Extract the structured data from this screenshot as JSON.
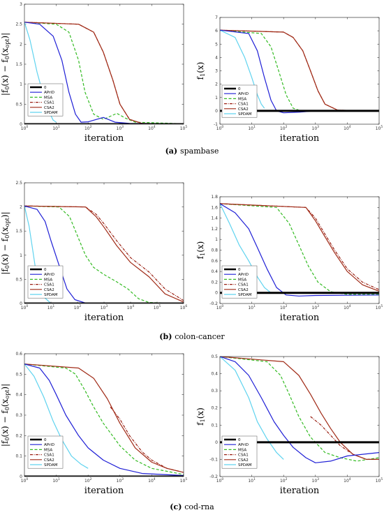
{
  "x_axis_label": "iteration",
  "legend": [
    {
      "name": "0",
      "color": "#000000",
      "dash": "",
      "width": 3
    },
    {
      "name": "APriD",
      "color": "#1f1fd6",
      "dash": "",
      "width": 1.2
    },
    {
      "name": "MSA",
      "color": "#33bb22",
      "dash": "4,2.5",
      "width": 1.2
    },
    {
      "name": "CSA1",
      "color": "#9a1f12",
      "dash": "4,1.5,1,1.5",
      "width": 1.2
    },
    {
      "name": "CSA2",
      "color": "#a02a16",
      "dash": "",
      "width": 1.2
    },
    {
      "name": "SPDAM",
      "color": "#5fd3ef",
      "dash": "",
      "width": 1.2
    }
  ],
  "captions": [
    {
      "letter": "(a)",
      "text": "spambase"
    },
    {
      "letter": "(b)",
      "text": "colon-cancer"
    },
    {
      "letter": "(c)",
      "text": "cod-rna"
    }
  ],
  "chart_data": [
    {
      "type": "line",
      "panel": "a-left",
      "xscale": "log",
      "xlim": [
        1,
        100000
      ],
      "ylim": [
        0,
        3
      ],
      "yticks": [
        "0",
        "0.5",
        "1",
        "1.5",
        "2",
        "2.5",
        "3"
      ],
      "xticks": [
        "10^0",
        "10^1",
        "10^2",
        "10^3",
        "10^4",
        "10^5"
      ],
      "xlabel": "iteration",
      "ylabel": "|f_0(x) − f_0(x_opt)|",
      "series": [
        {
          "name": "0",
          "x": [
            1,
            100000
          ],
          "y": [
            0,
            0
          ]
        },
        {
          "name": "APriD",
          "x": [
            1,
            3,
            8,
            15,
            25,
            40,
            60,
            100,
            300,
            700,
            2000,
            100000
          ],
          "y": [
            2.55,
            2.5,
            2.2,
            1.6,
            0.8,
            0.25,
            0.05,
            0.06,
            0.17,
            0.05,
            0.02,
            0.01
          ]
        },
        {
          "name": "MSA",
          "x": [
            1,
            10,
            25,
            50,
            80,
            150,
            300,
            800,
            1500,
            3000,
            100000
          ],
          "y": [
            2.55,
            2.5,
            2.3,
            1.6,
            0.8,
            0.25,
            0.12,
            0.27,
            0.15,
            0.05,
            0.01
          ]
        },
        {
          "name": "CSA1",
          "x": [
            1,
            50,
            150,
            300,
            600,
            1000,
            2000,
            5000,
            100000
          ],
          "y": [
            2.55,
            2.5,
            2.3,
            1.8,
            1.1,
            0.5,
            0.12,
            0.02,
            0.0
          ]
        },
        {
          "name": "CSA2",
          "x": [
            1,
            50,
            150,
            300,
            600,
            1000,
            2000,
            5000,
            100000
          ],
          "y": [
            2.55,
            2.5,
            2.3,
            1.8,
            1.1,
            0.5,
            0.12,
            0.02,
            0.0
          ]
        },
        {
          "name": "SPDAM",
          "x": [
            1,
            1.5,
            2.5,
            4,
            6,
            8,
            10
          ],
          "y": [
            2.55,
            2.1,
            1.3,
            0.7,
            0.3,
            0.1,
            0.05
          ]
        }
      ]
    },
    {
      "type": "line",
      "panel": "a-right",
      "xscale": "log",
      "xlim": [
        1,
        100000
      ],
      "ylim": [
        -1,
        7
      ],
      "yticks": [
        "-1",
        "0",
        "1",
        "2",
        "3",
        "4",
        "5",
        "6",
        "7"
      ],
      "xticks": [
        "10^0",
        "10^1",
        "10^2",
        "10^3",
        "10^4",
        "10^5"
      ],
      "xlabel": "iteration",
      "ylabel": "f_1(x)",
      "series": [
        {
          "name": "0",
          "x": [
            1,
            100000
          ],
          "y": [
            0,
            0
          ]
        },
        {
          "name": "APriD",
          "x": [
            1,
            8,
            15,
            25,
            40,
            60,
            100,
            300,
            1000,
            100000
          ],
          "y": [
            6.05,
            5.8,
            4.5,
            2.5,
            0.8,
            0.0,
            -0.15,
            -0.1,
            0.0,
            0.0
          ]
        },
        {
          "name": "MSA",
          "x": [
            1,
            20,
            40,
            70,
            120,
            200,
            400,
            1000,
            100000
          ],
          "y": [
            6.05,
            5.8,
            4.8,
            3.0,
            1.2,
            0.2,
            -0.05,
            0.0,
            0.0
          ]
        },
        {
          "name": "CSA1",
          "x": [
            1,
            100,
            200,
            400,
            700,
            1200,
            2000,
            5000,
            100000
          ],
          "y": [
            6.05,
            5.9,
            5.5,
            4.5,
            3.0,
            1.5,
            0.5,
            0.05,
            0.0
          ]
        },
        {
          "name": "CSA2",
          "x": [
            1,
            100,
            200,
            400,
            700,
            1200,
            2000,
            5000,
            100000
          ],
          "y": [
            6.05,
            5.9,
            5.5,
            4.5,
            3.0,
            1.5,
            0.5,
            0.05,
            0.0
          ]
        },
        {
          "name": "SPDAM",
          "x": [
            1,
            3,
            6,
            10,
            15,
            20,
            25
          ],
          "y": [
            6.05,
            5.5,
            4.0,
            2.5,
            1.2,
            0.5,
            0.2
          ]
        }
      ]
    },
    {
      "type": "line",
      "panel": "b-left",
      "xscale": "log",
      "xlim": [
        1,
        1000000
      ],
      "ylim": [
        0,
        2.5
      ],
      "yticks": [
        "0",
        "0.5",
        "1",
        "1.5",
        "2",
        "2.5"
      ],
      "xticks": [
        "10^0",
        "10^1",
        "10^2",
        "10^3",
        "10^4",
        "10^5",
        "10^6"
      ],
      "xlabel": "iteration",
      "ylabel": "|f_0(x) − f_0(x_opt)|",
      "series": [
        {
          "name": "0",
          "x": [
            1,
            1000000
          ],
          "y": [
            0,
            0
          ]
        },
        {
          "name": "APriD",
          "x": [
            1,
            3,
            6,
            10,
            20,
            40,
            80,
            200,
            1000,
            1000000
          ],
          "y": [
            2.02,
            1.95,
            1.7,
            1.3,
            0.8,
            0.3,
            0.08,
            0.01,
            0.0,
            0.0
          ]
        },
        {
          "name": "MSA",
          "x": [
            1,
            20,
            50,
            100,
            200,
            400,
            1000,
            3000,
            8000,
            20000,
            50000,
            1000000
          ],
          "y": [
            2.02,
            2.0,
            1.8,
            1.4,
            1.0,
            0.75,
            0.6,
            0.45,
            0.3,
            0.1,
            0.02,
            0.0
          ]
        },
        {
          "name": "CSA1",
          "x": [
            1,
            200,
            500,
            1000,
            3000,
            10000,
            50000,
            200000,
            1000000
          ],
          "y": [
            2.02,
            2.0,
            1.85,
            1.65,
            1.3,
            0.95,
            0.65,
            0.3,
            0.06
          ]
        },
        {
          "name": "CSA2",
          "x": [
            1,
            200,
            500,
            1000,
            3000,
            10000,
            50000,
            200000,
            1000000
          ],
          "y": [
            2.02,
            2.0,
            1.8,
            1.58,
            1.2,
            0.85,
            0.55,
            0.2,
            0.03
          ]
        },
        {
          "name": "SPDAM",
          "x": [
            1,
            1.5,
            2.2,
            3,
            5,
            8,
            10
          ],
          "y": [
            2.02,
            1.6,
            1.0,
            0.5,
            0.15,
            0.05,
            0.0
          ]
        }
      ]
    },
    {
      "type": "line",
      "panel": "b-right",
      "xscale": "log",
      "xlim": [
        1,
        100000
      ],
      "ylim": [
        -0.2,
        1.8
      ],
      "yticks": [
        "-0.2",
        "0",
        "0.2",
        "0.4",
        "0.6",
        "0.8",
        "1",
        "1.2",
        "1.4",
        "1.6",
        "1.8"
      ],
      "xticks": [
        "10^0",
        "10^1",
        "10^2",
        "10^3",
        "10^4",
        "10^5"
      ],
      "xlabel": "iteration",
      "ylabel": "f_1(x)",
      "series": [
        {
          "name": "0",
          "x": [
            1,
            100000
          ],
          "y": [
            0,
            0
          ]
        },
        {
          "name": "APriD",
          "x": [
            1,
            3,
            8,
            15,
            30,
            60,
            120,
            300,
            1000,
            100000
          ],
          "y": [
            1.67,
            1.5,
            1.2,
            0.85,
            0.45,
            0.1,
            -0.04,
            -0.06,
            -0.05,
            -0.04
          ]
        },
        {
          "name": "MSA",
          "x": [
            1,
            60,
            150,
            300,
            600,
            1200,
            3000,
            10000,
            100000
          ],
          "y": [
            1.67,
            1.6,
            1.3,
            0.9,
            0.5,
            0.2,
            0.02,
            -0.03,
            -0.03
          ]
        },
        {
          "name": "CSA1",
          "x": [
            1,
            500,
            1000,
            2000,
            4000,
            10000,
            30000,
            100000
          ],
          "y": [
            1.67,
            1.6,
            1.4,
            1.1,
            0.8,
            0.45,
            0.2,
            0.06
          ]
        },
        {
          "name": "CSA2",
          "x": [
            1,
            500,
            1000,
            2000,
            4000,
            10000,
            30000,
            100000
          ],
          "y": [
            1.67,
            1.6,
            1.35,
            1.05,
            0.75,
            0.4,
            0.15,
            0.03
          ]
        },
        {
          "name": "SPDAM",
          "x": [
            1,
            2,
            4,
            8,
            15,
            25,
            40
          ],
          "y": [
            1.67,
            1.3,
            0.9,
            0.6,
            0.3,
            0.1,
            0.0
          ]
        }
      ]
    },
    {
      "type": "line",
      "panel": "c-left",
      "xscale": "log",
      "xlim": [
        1,
        100000
      ],
      "ylim": [
        0,
        0.6
      ],
      "yticks": [
        "0",
        "0.1",
        "0.2",
        "0.3",
        "0.4",
        "0.5",
        "0.6"
      ],
      "xticks": [
        "10^0",
        "10^1",
        "10^2",
        "10^3",
        "10^4",
        "10^5"
      ],
      "xlabel": "iteration",
      "ylabel": "|f_0(x) − f_0(x_opt)|",
      "series": [
        {
          "name": "0",
          "x": [
            1,
            100000
          ],
          "y": [
            0,
            0
          ]
        },
        {
          "name": "APriD",
          "x": [
            1,
            3,
            6,
            10,
            20,
            50,
            100,
            300,
            1000,
            5000,
            100000
          ],
          "y": [
            0.55,
            0.53,
            0.47,
            0.4,
            0.3,
            0.2,
            0.14,
            0.08,
            0.04,
            0.015,
            0.005
          ]
        },
        {
          "name": "MSA",
          "x": [
            1,
            20,
            40,
            80,
            150,
            300,
            1000,
            3000,
            10000,
            100000
          ],
          "y": [
            0.55,
            0.53,
            0.5,
            0.42,
            0.34,
            0.26,
            0.15,
            0.08,
            0.04,
            0.01
          ]
        },
        {
          "name": "CSA1",
          "x": [
            500,
            1000,
            2000,
            5000,
            10000,
            30000,
            100000
          ],
          "y": [
            0.34,
            0.28,
            0.2,
            0.12,
            0.08,
            0.04,
            0.02
          ]
        },
        {
          "name": "CSA2",
          "x": [
            1,
            50,
            150,
            400,
            1000,
            3000,
            10000,
            30000,
            100000
          ],
          "y": [
            0.55,
            0.53,
            0.48,
            0.38,
            0.26,
            0.14,
            0.07,
            0.04,
            0.02
          ]
        },
        {
          "name": "SPDAM",
          "x": [
            1,
            2,
            4,
            8,
            15,
            30,
            60,
            100
          ],
          "y": [
            0.55,
            0.49,
            0.39,
            0.27,
            0.18,
            0.1,
            0.06,
            0.04
          ]
        }
      ]
    },
    {
      "type": "line",
      "panel": "c-right",
      "xscale": "log",
      "xlim": [
        1,
        100000
      ],
      "ylim": [
        -0.2,
        0.5
      ],
      "yticks": [
        "-0.2",
        "-0.1",
        "0",
        "0.1",
        "0.2",
        "0.3",
        "0.4",
        "0.5"
      ],
      "xticks": [
        "10^0",
        "10^1",
        "10^2",
        "10^3",
        "10^4",
        "10^5"
      ],
      "xlabel": "iteration",
      "ylabel": "f_1(x)",
      "series": [
        {
          "name": "0",
          "x": [
            1,
            100000
          ],
          "y": [
            0,
            0
          ]
        },
        {
          "name": "APriD",
          "x": [
            1,
            3,
            8,
            20,
            50,
            100,
            200,
            500,
            1000,
            3000,
            10000,
            100000
          ],
          "y": [
            0.5,
            0.47,
            0.39,
            0.26,
            0.12,
            0.04,
            -0.03,
            -0.09,
            -0.12,
            -0.11,
            -0.08,
            -0.06
          ]
        },
        {
          "name": "MSA",
          "x": [
            1,
            30,
            80,
            150,
            300,
            700,
            2000,
            6000,
            20000,
            100000
          ],
          "y": [
            0.5,
            0.47,
            0.39,
            0.28,
            0.15,
            0.03,
            -0.06,
            -0.09,
            -0.11,
            -0.09
          ]
        },
        {
          "name": "CSA1",
          "x": [
            700,
            1500,
            3000,
            6000,
            15000,
            40000,
            100000
          ],
          "y": [
            0.15,
            0.1,
            0.04,
            -0.02,
            -0.07,
            -0.1,
            -0.1
          ]
        },
        {
          "name": "CSA2",
          "x": [
            1,
            100,
            300,
            700,
            1500,
            3000,
            6000,
            15000,
            40000,
            100000
          ],
          "y": [
            0.5,
            0.47,
            0.39,
            0.28,
            0.17,
            0.08,
            0.0,
            -0.07,
            -0.1,
            -0.1
          ]
        },
        {
          "name": "SPDAM",
          "x": [
            1,
            3,
            8,
            15,
            30,
            60,
            100
          ],
          "y": [
            0.5,
            0.42,
            0.26,
            0.12,
            0.02,
            -0.06,
            -0.1
          ]
        }
      ]
    }
  ]
}
